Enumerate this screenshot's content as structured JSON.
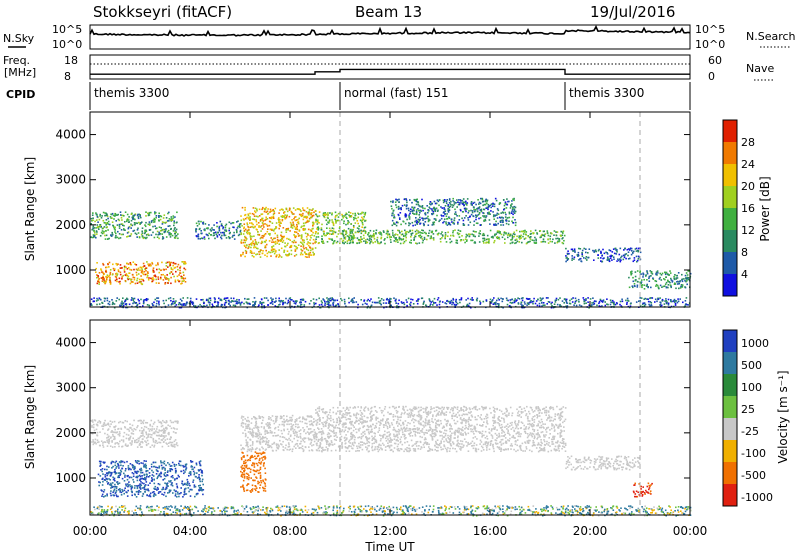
{
  "header": {
    "station": "Stokkseyri (fitACF)",
    "beam": "Beam 13",
    "date": "19/Jul/2016"
  },
  "side_labels": {
    "nsky": "N.Sky",
    "nsearch": "N.Search",
    "freq_line1": "Freq.",
    "freq_line2": "[MHz]",
    "nave": "Nave",
    "cpid": "CPID"
  },
  "noise_panel": {
    "ytick_top": "10^5",
    "ytick_bottom": "10^0",
    "rtick_top": "10^5",
    "rtick_bottom": "10^0"
  },
  "freq_panel": {
    "ytick_top": "18",
    "ytick_bottom": "8",
    "rtick_top": "60",
    "rtick_bottom": "0"
  },
  "cpid_panel": {
    "segments": [
      {
        "label": "themis 3300",
        "start": 0,
        "end": 10
      },
      {
        "label": "normal (fast) 151",
        "start": 10,
        "end": 19
      },
      {
        "label": "themis 3300",
        "start": 19,
        "end": 24
      }
    ]
  },
  "power_panel": {
    "ylabel": "Slant Range [km]",
    "colorbar_label": "Power [dB]",
    "colorbar_ticks": [
      "4",
      "8",
      "12",
      "16",
      "20",
      "24",
      "28"
    ],
    "colorbar_colors": [
      "#1010e0",
      "#1e5aa8",
      "#2a8a60",
      "#40b040",
      "#a0d020",
      "#f0c000",
      "#f07a00",
      "#e02000"
    ]
  },
  "velocity_panel": {
    "ylabel": "Slant Range [km]",
    "colorbar_label": "Velocity [m s⁻¹]",
    "colorbar_ticks": [
      "1000",
      "500",
      "100",
      "25",
      "-25",
      "-100",
      "-500",
      "-1000"
    ],
    "colorbar_colors": [
      "#2040c0",
      "#2e7aa0",
      "#2a8a3a",
      "#6cc040",
      "#c8c8c8",
      "#f0b000",
      "#f07000",
      "#e02010"
    ]
  },
  "xaxis": {
    "label": "Time UT",
    "ticks": [
      "00:00",
      "04:00",
      "08:00",
      "12:00",
      "16:00",
      "20:00",
      "00:00"
    ]
  },
  "chart_data": {
    "type": "heatmap",
    "title": "Stokkseyri (fitACF) Beam 13 19/Jul/2016",
    "xlabel": "Time UT",
    "ylabel": "Slant Range [km]",
    "xlim_hours": [
      0,
      24
    ],
    "ylim_km": [
      180,
      4500
    ],
    "yticks": [
      1000,
      2000,
      3000,
      4000
    ],
    "cpid_changes_hours": [
      10,
      19
    ],
    "frequency_mhz": [
      {
        "start": 0,
        "end": 9,
        "value": 10
      },
      {
        "start": 9,
        "end": 10,
        "value": 11
      },
      {
        "start": 10,
        "end": 19,
        "value": 12
      },
      {
        "start": 19,
        "end": 24,
        "value": 10
      }
    ],
    "power_regions": [
      {
        "t0": 0.0,
        "t1": 3.5,
        "r0": 1700,
        "r1": 2300,
        "power_db": 12
      },
      {
        "t0": 0.2,
        "t1": 3.8,
        "r0": 700,
        "r1": 1200,
        "power_db": 24
      },
      {
        "t0": 4.2,
        "t1": 6.0,
        "r0": 1700,
        "r1": 2100,
        "power_db": 8
      },
      {
        "t0": 6.0,
        "t1": 9.0,
        "r0": 1300,
        "r1": 2400,
        "power_db": 22
      },
      {
        "t0": 9.0,
        "t1": 11.0,
        "r0": 1600,
        "r1": 2300,
        "power_db": 16
      },
      {
        "t0": 10.0,
        "t1": 19.0,
        "r0": 1600,
        "r1": 1900,
        "power_db": 14
      },
      {
        "t0": 12.0,
        "t1": 17.0,
        "r0": 2000,
        "r1": 2600,
        "power_db": 8
      },
      {
        "t0": 19.0,
        "t1": 22.0,
        "r0": 1200,
        "r1": 1500,
        "power_db": 6
      },
      {
        "t0": 21.5,
        "t1": 24.0,
        "r0": 600,
        "r1": 1000,
        "power_db": 10
      },
      {
        "t0": 0.0,
        "t1": 24.0,
        "r0": 180,
        "r1": 400,
        "power_db": 6
      }
    ],
    "velocity_regions": [
      {
        "t0": 0.0,
        "t1": 3.5,
        "r0": 1700,
        "r1": 2300,
        "velocity": 0
      },
      {
        "t0": 0.3,
        "t1": 4.5,
        "r0": 600,
        "r1": 1400,
        "velocity": 500
      },
      {
        "t0": 6.0,
        "t1": 7.0,
        "r0": 700,
        "r1": 1600,
        "velocity": -300
      },
      {
        "t0": 6.0,
        "t1": 9.0,
        "r0": 1600,
        "r1": 2400,
        "velocity": 0
      },
      {
        "t0": 9.0,
        "t1": 19.0,
        "r0": 1600,
        "r1": 2600,
        "velocity": 0
      },
      {
        "t0": 19.0,
        "t1": 22.0,
        "r0": 1200,
        "r1": 1500,
        "velocity": 0
      },
      {
        "t0": 21.7,
        "t1": 22.5,
        "r0": 600,
        "r1": 900,
        "velocity": -600
      },
      {
        "t0": 0.0,
        "t1": 24.0,
        "r0": 180,
        "r1": 400,
        "velocity": 100
      }
    ]
  }
}
